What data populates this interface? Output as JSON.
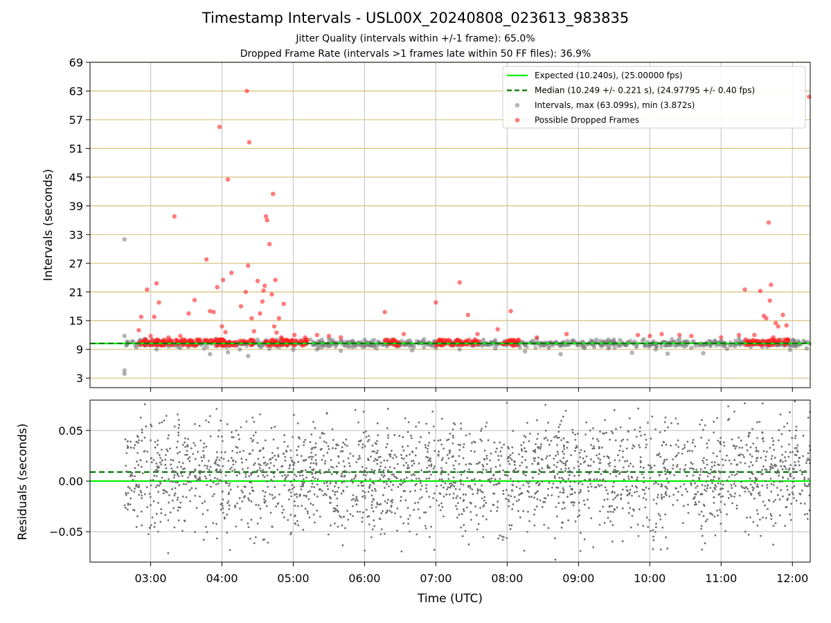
{
  "page": {
    "title": "Timestamp Intervals - USL00X_20240808_023613_983835",
    "subtitle_1": "Jitter Quality (intervals within +/-1 frame): 65.0%",
    "subtitle_2": "Dropped Frame Rate (intervals >1 frames late within 50 FF files): 36.9%"
  },
  "colors": {
    "expected": "#00ee00",
    "median": "#007700",
    "intervals": "#808080",
    "dropped": "#ff2222",
    "hgrid_top": "#d4c07a",
    "grid": "#c8c8c8"
  },
  "chart_data": [
    {
      "type": "scatter",
      "panel": "intervals",
      "xlabel": "",
      "ylabel": "Intervals (seconds)",
      "x_range_hours": [
        2.15,
        12.25
      ],
      "xlim": [
        "02:09",
        "12:15"
      ],
      "ylim": [
        1,
        69
      ],
      "yticks": [
        3,
        9,
        15,
        21,
        27,
        33,
        39,
        45,
        51,
        57,
        63,
        69
      ],
      "grid": "horizontal gold lines, vertical grey lines",
      "legend_position": "top-right",
      "legend": [
        "Expected (10.240s), (25.00000 fps)",
        "Median (10.249 +/- 0.221 s), (24.97795 +/- 0.40 fps)",
        "Intervals, max (63.099s), min (3.872s)",
        "Possible Dropped Frames"
      ],
      "expected_line": 10.24,
      "median_line": 10.249,
      "series": [
        {
          "name": "Intervals, max (63.099s), min (3.872s)",
          "x": [
            "02:38",
            "02:38",
            "02:38",
            "02:38",
            "02:48",
            "02:55",
            "03:05",
            "03:15",
            "03:25",
            "03:35",
            "03:45",
            "03:50",
            "03:55",
            "04:05",
            "04:15",
            "04:22",
            "04:30",
            "04:40",
            "04:50",
            "05:00",
            "05:10",
            "05:20",
            "05:30",
            "05:40",
            "05:50",
            "06:00",
            "06:10",
            "06:20",
            "06:40",
            "06:50",
            "07:00",
            "07:10",
            "07:20",
            "07:40",
            "07:50",
            "08:05",
            "08:15",
            "08:25",
            "08:35",
            "08:45",
            "08:55",
            "09:05",
            "09:15",
            "09:25",
            "09:35",
            "09:45",
            "09:55",
            "10:05",
            "10:15",
            "10:25",
            "10:35",
            "10:45",
            "10:55",
            "11:05",
            "11:15",
            "11:25",
            "11:50",
            "11:58",
            "12:05",
            "12:12"
          ],
          "y": [
            32.0,
            4.6,
            3.9,
            11.8,
            9.4,
            11.2,
            9.0,
            11.0,
            9.3,
            10.8,
            9.2,
            8.0,
            11.2,
            8.4,
            9.0,
            7.6,
            11.0,
            9.1,
            11.3,
            8.9,
            11.1,
            9.0,
            11.2,
            8.7,
            9.5,
            11.0,
            9.2,
            10.9,
            8.8,
            11.1,
            9.3,
            10.8,
            9.0,
            11.0,
            9.2,
            10.9,
            8.6,
            11.2,
            9.3,
            8.0,
            10.8,
            9.4,
            11.0,
            9.2,
            10.9,
            8.3,
            11.1,
            9.0,
            8.1,
            11.2,
            9.3,
            8.2,
            10.8,
            9.1,
            11.3,
            9.5,
            11.0,
            8.9,
            10.7,
            9.2
          ]
        },
        {
          "name": "Possible Dropped Frames",
          "x": [
            "02:50",
            "02:52",
            "02:57",
            "03:00",
            "03:03",
            "03:05",
            "03:07",
            "03:15",
            "03:20",
            "03:25",
            "03:32",
            "03:37",
            "03:47",
            "03:50",
            "03:53",
            "03:56",
            "03:58",
            "04:00",
            "04:01",
            "04:03",
            "04:05",
            "04:08",
            "04:16",
            "04:20",
            "04:21",
            "04:22",
            "04:23",
            "04:25",
            "04:27",
            "04:30",
            "04:32",
            "04:34",
            "04:35",
            "04:36",
            "04:37",
            "04:38",
            "04:40",
            "04:42",
            "04:43",
            "04:44",
            "04:45",
            "04:46",
            "04:48",
            "04:50",
            "04:52",
            "05:01",
            "05:10",
            "05:20",
            "05:30",
            "05:40",
            "06:17",
            "06:33",
            "07:00",
            "07:20",
            "07:27",
            "07:28",
            "07:35",
            "07:52",
            "08:03",
            "08:25",
            "08:50",
            "09:50",
            "10:00",
            "10:10",
            "10:25",
            "10:35",
            "11:00",
            "11:15",
            "11:20",
            "11:28",
            "11:33",
            "11:36",
            "11:38",
            "11:40",
            "11:41",
            "11:42",
            "11:44",
            "11:46",
            "11:48",
            "11:52",
            "11:55",
            "12:14"
          ],
          "y": [
            13.0,
            15.8,
            21.5,
            11.8,
            15.8,
            22.8,
            18.8,
            11.5,
            36.8,
            11.8,
            16.5,
            19.3,
            27.8,
            17.0,
            16.8,
            22.0,
            55.5,
            13.8,
            23.5,
            12.6,
            44.5,
            25.0,
            18.0,
            21.0,
            63.0,
            26.5,
            52.3,
            15.5,
            12.8,
            23.3,
            16.5,
            19.0,
            21.3,
            22.3,
            36.8,
            36.0,
            31.0,
            20.5,
            41.5,
            13.8,
            23.5,
            12.5,
            15.5,
            11.5,
            18.5,
            12.0,
            11.5,
            12.0,
            11.8,
            11.5,
            16.8,
            12.2,
            18.8,
            23.0,
            16.2,
            11.0,
            12.2,
            13.2,
            17.0,
            11.5,
            12.2,
            12.0,
            11.8,
            12.2,
            12.0,
            11.8,
            11.5,
            12.0,
            21.5,
            12.0,
            21.2,
            16.0,
            15.5,
            35.5,
            19.2,
            22.5,
            11.5,
            14.5,
            13.8,
            16.2,
            14.0,
            61.8
          ],
          "dense_bands": [
            [
              "02:50",
              "03:42"
            ],
            [
              "03:45",
              "04:28"
            ],
            [
              "04:35",
              "05:12"
            ],
            [
              "06:17",
              "06:30"
            ],
            [
              "07:00",
              "07:15"
            ],
            [
              "07:17",
              "07:37"
            ],
            [
              "07:55",
              "08:10"
            ],
            [
              "11:20",
              "11:57"
            ]
          ],
          "dense_band_value": 10.3
        }
      ]
    },
    {
      "type": "scatter",
      "panel": "residuals",
      "xlabel": "Time (UTC)",
      "ylabel": "Residuals (seconds)",
      "ylim": [
        -0.08,
        0.08
      ],
      "yticks": [
        -0.05,
        0.0,
        0.05
      ],
      "ytick_labels": [
        "−0.05",
        "0.00",
        "0.05"
      ],
      "xticks": [
        "03:00",
        "04:00",
        "05:00",
        "06:00",
        "07:00",
        "08:00",
        "09:00",
        "10:00",
        "11:00",
        "12:00"
      ],
      "expected_line": 0.0,
      "median_line": 0.009,
      "series": [
        {
          "name": "",
          "x_range": [
            "02:38",
            "12:15"
          ],
          "spread_sd": 0.03,
          "count": 2400
        }
      ]
    }
  ]
}
